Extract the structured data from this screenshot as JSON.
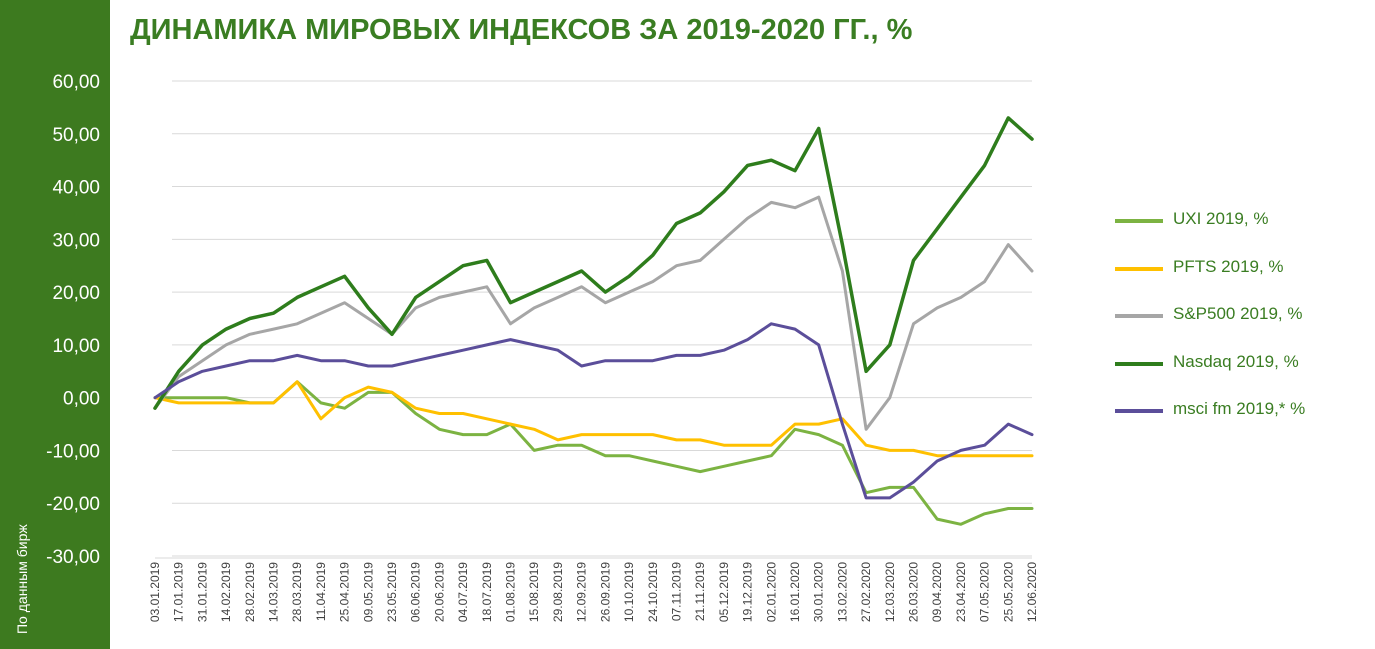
{
  "page": {
    "title": "ДИНАМИКА МИРОВЫХ ИНДЕКСОВ ЗА 2019-2020 ГГ., %",
    "source_note": "По данным бирж"
  },
  "chart_data": {
    "type": "line",
    "title": "ДИНАМИКА МИРОВЫХ ИНДЕКСОВ ЗА 2019-2020 ГГ., %",
    "ylim": [
      -30,
      60
    ],
    "y_ticks": [
      "60,00",
      "50,00",
      "40,00",
      "30,00",
      "20,00",
      "10,00",
      "0,00",
      "-10,00",
      "-20,00",
      "-30,00"
    ],
    "y_tick_values": [
      60,
      50,
      40,
      30,
      20,
      10,
      0,
      -10,
      -20,
      -30
    ],
    "grid": true,
    "legend_position": "right",
    "x_labels": [
      "03.01.2019",
      "17.01.2019",
      "31.01.2019",
      "14.02.2019",
      "28.02.2019",
      "14.03.2019",
      "28.03.2019",
      "11.04.2019",
      "25.04.2019",
      "09.05.2019",
      "23.05.2019",
      "06.06.2019",
      "20.06.2019",
      "04.07.2019",
      "18.07.2019",
      "01.08.2019",
      "15.08.2019",
      "29.08.2019",
      "12.09.2019",
      "26.09.2019",
      "10.10.2019",
      "24.10.2019",
      "07.11.2019",
      "21.11.2019",
      "05.12.2019",
      "19.12.2019",
      "02.01.2020",
      "16.01.2020",
      "30.01.2020",
      "13.02.2020",
      "27.02.2020",
      "12.03.2020",
      "26.03.2020",
      "09.04.2020",
      "23.04.2020",
      "07.05.2020",
      "25.05.2020",
      "12.06.2020"
    ],
    "series": [
      {
        "name": "UXI 2019, %",
        "color": "#7cb342",
        "width": 3,
        "values": [
          0,
          0,
          0,
          0,
          -1,
          -1,
          3,
          -1,
          -2,
          1,
          1,
          -3,
          -6,
          -7,
          -7,
          -5,
          -10,
          -9,
          -9,
          -11,
          -11,
          -12,
          -13,
          -14,
          -13,
          -12,
          -11,
          -6,
          -7,
          -9,
          -18,
          -17,
          -17,
          -23,
          -24,
          -22,
          -21,
          -21
        ]
      },
      {
        "name": "PFTS 2019, %",
        "color": "#ffc000",
        "width": 3,
        "values": [
          0,
          -1,
          -1,
          -1,
          -1,
          -1,
          3,
          -4,
          0,
          2,
          1,
          -2,
          -3,
          -3,
          -4,
          -5,
          -6,
          -8,
          -7,
          -7,
          -7,
          -7,
          -8,
          -8,
          -9,
          -9,
          -9,
          -5,
          -5,
          -4,
          -9,
          -10,
          -10,
          -11,
          -11,
          -11,
          -11,
          -11
        ]
      },
      {
        "name": "S&P500 2019, %",
        "color": "#a6a6a6",
        "width": 3,
        "values": [
          -2,
          4,
          7,
          10,
          12,
          13,
          14,
          16,
          18,
          15,
          12,
          17,
          19,
          20,
          21,
          14,
          17,
          19,
          21,
          18,
          20,
          22,
          25,
          26,
          30,
          34,
          37,
          36,
          38,
          24,
          -6,
          0,
          14,
          17,
          19,
          22,
          29,
          24
        ]
      },
      {
        "name": "Nasdaq 2019, %",
        "color": "#2e7d1c",
        "width": 3.5,
        "values": [
          -2,
          5,
          10,
          13,
          15,
          16,
          19,
          21,
          23,
          17,
          12,
          19,
          22,
          25,
          26,
          18,
          20,
          22,
          24,
          20,
          23,
          27,
          33,
          35,
          39,
          44,
          45,
          43,
          51,
          29,
          5,
          10,
          26,
          32,
          38,
          44,
          53,
          49
        ]
      },
      {
        "name": "msci fm 2019,* %",
        "color": "#5b4e9a",
        "width": 3,
        "values": [
          0,
          3,
          5,
          6,
          7,
          7,
          8,
          7,
          7,
          6,
          6,
          7,
          8,
          9,
          10,
          11,
          10,
          9,
          6,
          7,
          7,
          7,
          8,
          8,
          9,
          11,
          14,
          13,
          10,
          -5,
          -19,
          -19,
          -16,
          -12,
          -10,
          -9,
          -5,
          -7
        ]
      }
    ]
  },
  "legend": {
    "items": [
      {
        "label": "UXI 2019, %",
        "color": "#7cb342"
      },
      {
        "label": "PFTS 2019, %",
        "color": "#ffc000"
      },
      {
        "label": "S&P500 2019, %",
        "color": "#a6a6a6"
      },
      {
        "label": "Nasdaq 2019, %",
        "color": "#2e7d1c"
      },
      {
        "label": "msci fm 2019,* %",
        "color": "#5b4e9a"
      }
    ]
  }
}
